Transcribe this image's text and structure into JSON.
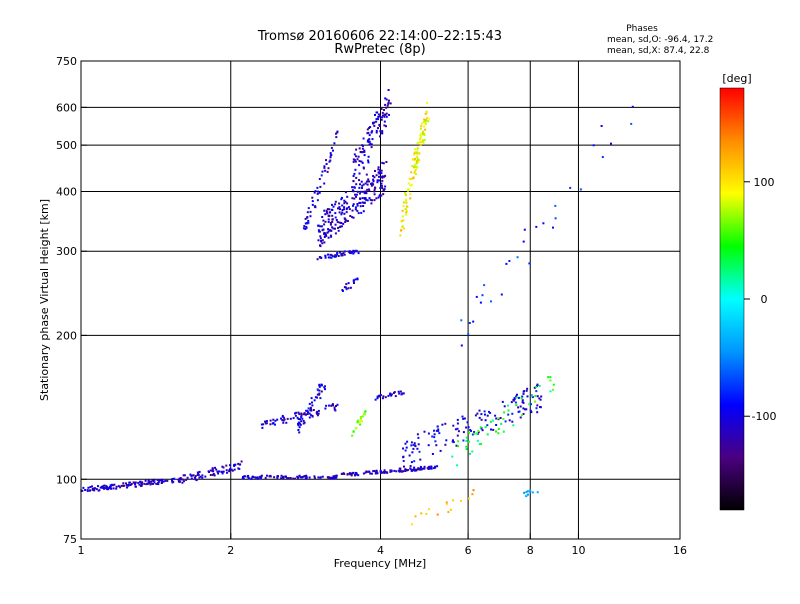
{
  "chart_data": {
    "type": "scatter",
    "title": "Tromsø 20160606 22:14:00–22:15:43",
    "subtitle": "RwPretec (8p)",
    "xlabel": "Frequency [MHz]",
    "ylabel": "Stationary phase Virtual Height [km]",
    "x_scale": "log",
    "y_scale": "log",
    "xlim": [
      1,
      16
    ],
    "ylim": [
      75,
      750
    ],
    "x_ticks": [
      1,
      2,
      4,
      6,
      8,
      10,
      16
    ],
    "y_ticks": [
      75,
      100,
      200,
      300,
      400,
      500,
      600,
      750
    ],
    "x_gridlines": [
      2,
      4,
      6,
      8,
      10
    ],
    "y_gridlines": [
      100,
      200,
      300,
      400,
      500,
      600
    ],
    "grid": true,
    "stats": {
      "heading": "Phases",
      "line_o": "mean, sd,O: -96.4, 17.2",
      "line_x": "mean, sd,X:  87.4, 22.8"
    },
    "colorbar": {
      "label": "[deg]",
      "range": [
        -180,
        180
      ],
      "ticks": [
        100,
        0,
        -100
      ],
      "colors": [
        "#000000",
        "#4b0082",
        "#0000ff",
        "#0096ff",
        "#00ffff",
        "#00ff00",
        "#ffff00",
        "#ff8c00",
        "#ff0000"
      ]
    },
    "segments": [
      {
        "f": [
          1.0,
          1.6
        ],
        "h": [
          95,
          100
        ],
        "phase": -110,
        "n": 130,
        "spread": 0.012
      },
      {
        "f": [
          1.6,
          2.1
        ],
        "h": [
          100,
          107
        ],
        "phase": -110,
        "n": 70,
        "spread": 0.02
      },
      {
        "f": [
          2.1,
          3.3
        ],
        "h": [
          101,
          101
        ],
        "phase": -110,
        "n": 90,
        "spread": 0.008
      },
      {
        "f": [
          3.3,
          5.2
        ],
        "h": [
          102,
          106
        ],
        "phase": -110,
        "n": 110,
        "spread": 0.008
      },
      {
        "f": [
          2.3,
          3.3
        ],
        "h": [
          130,
          142
        ],
        "phase": -110,
        "n": 70,
        "spread": 0.02
      },
      {
        "f": [
          2.7,
          3.1
        ],
        "h": [
          125,
          160
        ],
        "phase": -100,
        "n": 45,
        "spread": 0.03
      },
      {
        "f": [
          3.5,
          3.8
        ],
        "h": [
          125,
          140
        ],
        "phase": 60,
        "n": 20,
        "spread": 0.02
      },
      {
        "f": [
          3.9,
          4.5
        ],
        "h": [
          148,
          152
        ],
        "phase": -110,
        "n": 25,
        "spread": 0.01
      },
      {
        "f": [
          4.4,
          8.5
        ],
        "h": [
          112,
          150
        ],
        "phase": -100,
        "n": 150,
        "spread": 0.07
      },
      {
        "f": [
          5.5,
          9.0
        ],
        "h": [
          110,
          160
        ],
        "phase": 40,
        "n": 50,
        "spread": 0.06
      },
      {
        "f": [
          7.8,
          8.3
        ],
        "h": [
          93,
          95
        ],
        "phase": -30,
        "n": 10,
        "spread": 0.01
      },
      {
        "f": [
          4.5,
          6.5
        ],
        "h": [
          80,
          95
        ],
        "phase": 120,
        "n": 15,
        "spread": 0.03
      },
      {
        "f": [
          2.8,
          3.3
        ],
        "h": [
          330,
          530
        ],
        "phase": -105,
        "n": 55,
        "spread": 0.04
      },
      {
        "f": [
          3.0,
          3.6
        ],
        "h": [
          290,
          300
        ],
        "phase": -105,
        "n": 45,
        "spread": 0.01
      },
      {
        "f": [
          3.0,
          4.1
        ],
        "h": [
          330,
          430
        ],
        "phase": -110,
        "n": 230,
        "spread": 0.08
      },
      {
        "f": [
          3.5,
          4.2
        ],
        "h": [
          430,
          620
        ],
        "phase": -110,
        "n": 110,
        "spread": 0.08
      },
      {
        "f": [
          3.3,
          3.6
        ],
        "h": [
          250,
          260
        ],
        "phase": -100,
        "n": 15,
        "spread": 0.02
      },
      {
        "f": [
          4.4,
          5.0
        ],
        "h": [
          340,
          600
        ],
        "phase": 95,
        "n": 110,
        "spread": 0.06
      },
      {
        "f": [
          5.8,
          13.0
        ],
        "h": [
          200,
          620
        ],
        "phase": -80,
        "n": 30,
        "spread": 0.1
      }
    ]
  }
}
